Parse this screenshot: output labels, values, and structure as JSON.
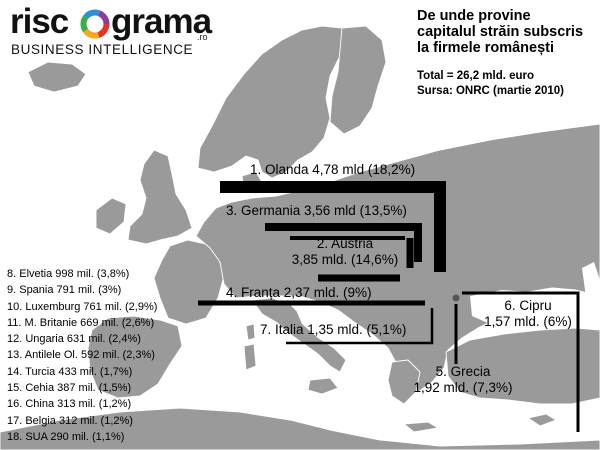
{
  "brand": {
    "logo_prefix": "risc",
    "logo_suffix": "grama",
    "logo_tld": ".ro",
    "tagline": "BUSINESS INTELLIGENCE"
  },
  "title_lines": [
    "De unde provine",
    "capitalul străin subscris",
    "la firmele românești"
  ],
  "total": "Total = 26,2 mld. euro",
  "source": "Sursa: ONRC  (martie 2010)",
  "flows": [
    {
      "rank": 1,
      "country": "Olanda",
      "lines": [
        "1. Olanda 4,78 mld (18,2%)"
      ],
      "value_mld": 4.78,
      "share_pct": 18.2
    },
    {
      "rank": 2,
      "country": "Austria",
      "lines": [
        "2. Austria",
        "3,85 mld. (14,6%)"
      ],
      "value_mld": 3.85,
      "share_pct": 14.6
    },
    {
      "rank": 3,
      "country": "Germania",
      "lines": [
        "3. Germania 3,56 mld (13,5%)"
      ],
      "value_mld": 3.56,
      "share_pct": 13.5
    },
    {
      "rank": 4,
      "country": "Franța",
      "lines": [
        "4. Franța 2,37 mld. (9%)"
      ],
      "value_mld": 2.37,
      "share_pct": 9
    },
    {
      "rank": 5,
      "country": "Grecia",
      "lines": [
        "5. Grecia",
        "1,92 mld. (7,3%)"
      ],
      "value_mld": 1.92,
      "share_pct": 7.3
    },
    {
      "rank": 6,
      "country": "Cipru",
      "lines": [
        "6. Cipru",
        "1,57 mld. (6%)"
      ],
      "value_mld": 1.57,
      "share_pct": 6
    },
    {
      "rank": 7,
      "country": "Italia",
      "lines": [
        "7. Italia 1,35 mld. (5,1%)"
      ],
      "value_mld": 1.35,
      "share_pct": 5.1
    }
  ],
  "others": [
    "8. Elvetia 998 mil. (3,8%)",
    "9. Spania 791 mil. (3%)",
    "10. Luxemburg 761 mil. (2,9%)",
    "11. M. Britanie 669 mil. (2,6%)",
    "12. Ungaria 631 mil. (2,4%)",
    "13. Antilele Ol. 592 mil. (2,3%)",
    "14. Turcia 433 mil. (1,7%)",
    "15. Cehia 387 mil. (1,5%)",
    "16. China 313 mil. (1,2%)",
    "17. Belgia 312 mil. (1,2%)",
    "18. SUA 290 mil. (1,1%)"
  ],
  "colors": {
    "land": "#9a9a9a",
    "sea": "#ffffff",
    "border": "#ffffff",
    "flow": "#000000",
    "logo_ring": [
      "#e63329",
      "#f7a823",
      "#3cab49",
      "#2b8fd6",
      "#8b3e97"
    ]
  }
}
